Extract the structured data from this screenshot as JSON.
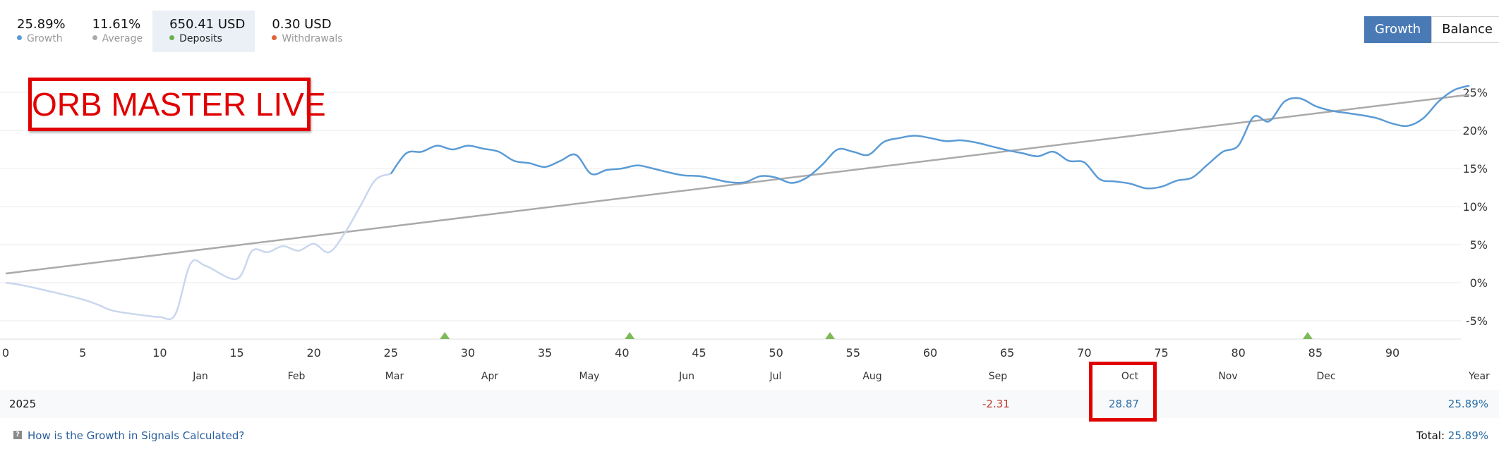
{
  "stats": [
    {
      "value": "25.89%",
      "label": "Growth",
      "color": "#5b9bd5",
      "active": false
    },
    {
      "value": "11.61%",
      "label": "Average",
      "color": "#aaaaaa",
      "active": false
    },
    {
      "value": "650.41 USD",
      "label": "Deposits",
      "color": "#6ab04c",
      "active": true
    },
    {
      "value": "0.30 USD",
      "label": "Withdrawals",
      "color": "#e0633a",
      "active": false
    }
  ],
  "toggle": {
    "growth_label": "Growth",
    "balance_label": "Balance",
    "active": "Growth"
  },
  "overlay_label": "ORB MASTER LIVE",
  "chart_data": {
    "type": "line",
    "title": "",
    "xlabel": "",
    "ylabel": "",
    "xlim": [
      0,
      95
    ],
    "ylim": [
      -7,
      27
    ],
    "x_ticks": [
      0,
      5,
      10,
      15,
      20,
      25,
      30,
      35,
      40,
      45,
      50,
      55,
      60,
      65,
      70,
      75,
      80,
      85,
      90
    ],
    "y_ticks": [
      -5,
      0,
      5,
      10,
      15,
      20,
      25
    ],
    "y_tick_suffix": "%",
    "grid": true,
    "series": [
      {
        "name": "Growth",
        "color": "#5b9bd5",
        "faded_color": "#c9d7ee",
        "faded_until_x": 25,
        "x": [
          0,
          1,
          3,
          5,
          6,
          7,
          9,
          10,
          11,
          12,
          13,
          15,
          16,
          17,
          18,
          19,
          20,
          21,
          22,
          23,
          24,
          25,
          26,
          27,
          28,
          29,
          30,
          31,
          32,
          33,
          34,
          35,
          36,
          37,
          38,
          39,
          40,
          41,
          42,
          43,
          44,
          45,
          46,
          47,
          48,
          49,
          50,
          51,
          52,
          53,
          54,
          55,
          56,
          57,
          58,
          59,
          60,
          61,
          62,
          63,
          64,
          65,
          66,
          67,
          68,
          69,
          70,
          71,
          72,
          73,
          74,
          75,
          76,
          77,
          78,
          79,
          80,
          81,
          82,
          83,
          84,
          85,
          86,
          87,
          88,
          89,
          90,
          91,
          92,
          93,
          94,
          95
        ],
        "y": [
          0,
          -0.3,
          -1.2,
          -2.2,
          -2.9,
          -3.7,
          -4.3,
          -4.5,
          -4.2,
          2.5,
          2.2,
          0.5,
          4.2,
          4.0,
          4.8,
          4.2,
          5.1,
          4.0,
          6.5,
          10.0,
          13.5,
          14.3,
          17.0,
          17.2,
          18.0,
          17.5,
          18.0,
          17.6,
          17.2,
          16.0,
          15.7,
          15.2,
          16.0,
          16.8,
          14.3,
          14.8,
          15.0,
          15.4,
          15.0,
          14.5,
          14.1,
          14.0,
          13.6,
          13.2,
          13.2,
          14.0,
          13.8,
          13.1,
          13.8,
          15.5,
          17.5,
          17.2,
          16.8,
          18.5,
          19.0,
          19.3,
          19.0,
          18.6,
          18.7,
          18.4,
          17.9,
          17.4,
          17.0,
          16.6,
          17.2,
          16.0,
          15.8,
          13.6,
          13.3,
          13.0,
          12.4,
          12.6,
          13.4,
          13.8,
          15.5,
          17.2,
          18.0,
          21.8,
          21.2,
          23.8,
          24.2,
          23.2,
          22.6,
          22.3,
          22.0,
          21.6,
          20.9,
          20.6,
          21.6,
          23.8,
          25.3,
          25.89
        ]
      },
      {
        "name": "Average",
        "color": "#aaaaaa",
        "x": [
          0,
          95
        ],
        "y": [
          1.2,
          24.7
        ]
      }
    ],
    "deposit_markers_x": [
      28.5,
      40.5,
      53.5,
      84.5
    ],
    "deposit_marker_color": "#7dba5a",
    "months": [
      "Jan",
      "Feb",
      "Mar",
      "Apr",
      "May",
      "Jun",
      "Jul",
      "Aug",
      "Sep",
      "Oct",
      "Nov",
      "Dec",
      "Year"
    ],
    "month_values": [
      {
        "month": "Sep",
        "value": "-2.31",
        "sign": "neg"
      },
      {
        "month": "Oct",
        "value": "28.87",
        "sign": "pos"
      },
      {
        "month": "Year",
        "value": "25.89%",
        "sign": "pos"
      }
    ]
  },
  "summary": {
    "year": "2025"
  },
  "footer": {
    "help_icon": "?",
    "help_text": "How is the Growth in Signals Calculated?",
    "total_label": "Total:",
    "total_value": "25.89%"
  }
}
